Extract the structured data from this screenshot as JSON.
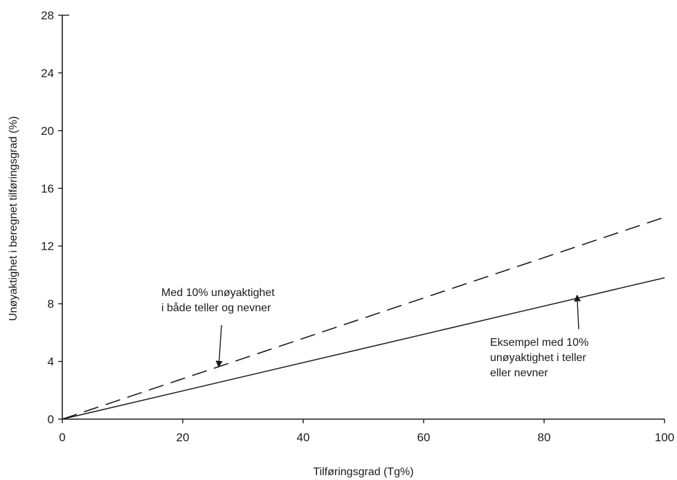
{
  "chart_data": {
    "type": "line",
    "title": "",
    "xlabel": "Tilføringsgrad (Tg%)",
    "ylabel": "Unøyaktighet i beregnet tilføringsgrad (%)",
    "xlim": [
      0,
      100
    ],
    "ylim": [
      0,
      28
    ],
    "xticks": [
      0,
      20,
      40,
      60,
      80,
      100
    ],
    "yticks": [
      0,
      4,
      8,
      12,
      16,
      20,
      24,
      28
    ],
    "grid": false,
    "series": [
      {
        "style": "dashed",
        "x": [
          0,
          100
        ],
        "y": [
          0,
          14
        ]
      },
      {
        "style": "solid",
        "x": [
          0,
          100
        ],
        "y": [
          0,
          9.8
        ]
      }
    ],
    "annotations": [
      {
        "lines": [
          "Med 10% unøyaktighet",
          "i både teller og nevner"
        ],
        "target_x": 26,
        "target_y": 3.8
      },
      {
        "lines": [
          "Eksempel med 10%",
          "unøyaktighet i teller",
          "eller nevner"
        ],
        "target_x": 85.5,
        "target_y": 8.4
      }
    ]
  }
}
